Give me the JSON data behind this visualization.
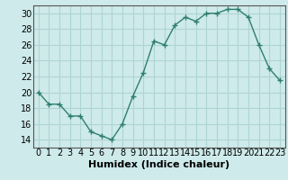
{
  "x": [
    0,
    1,
    2,
    3,
    4,
    5,
    6,
    7,
    8,
    9,
    10,
    11,
    12,
    13,
    14,
    15,
    16,
    17,
    18,
    19,
    20,
    21,
    22,
    23
  ],
  "y": [
    20,
    18.5,
    18.5,
    17,
    17,
    15,
    14.5,
    14,
    16,
    19.5,
    22.5,
    26.5,
    26,
    28.5,
    29.5,
    29,
    30,
    30,
    30.5,
    30.5,
    29.5,
    26,
    23,
    21.5
  ],
  "title": "",
  "xlabel": "Humidex (Indice chaleur)",
  "ylabel": "",
  "xlim": [
    -0.5,
    23.5
  ],
  "ylim": [
    13,
    31
  ],
  "yticks": [
    14,
    16,
    18,
    20,
    22,
    24,
    26,
    28,
    30
  ],
  "xticks": [
    0,
    1,
    2,
    3,
    4,
    5,
    6,
    7,
    8,
    9,
    10,
    11,
    12,
    13,
    14,
    15,
    16,
    17,
    18,
    19,
    20,
    21,
    22,
    23
  ],
  "line_color": "#2e7f6e",
  "marker_color": "#2e7f6e",
  "bg_color": "#ceeaea",
  "grid_color": "#aed4d4",
  "xlabel_fontsize": 8,
  "tick_fontsize": 7
}
